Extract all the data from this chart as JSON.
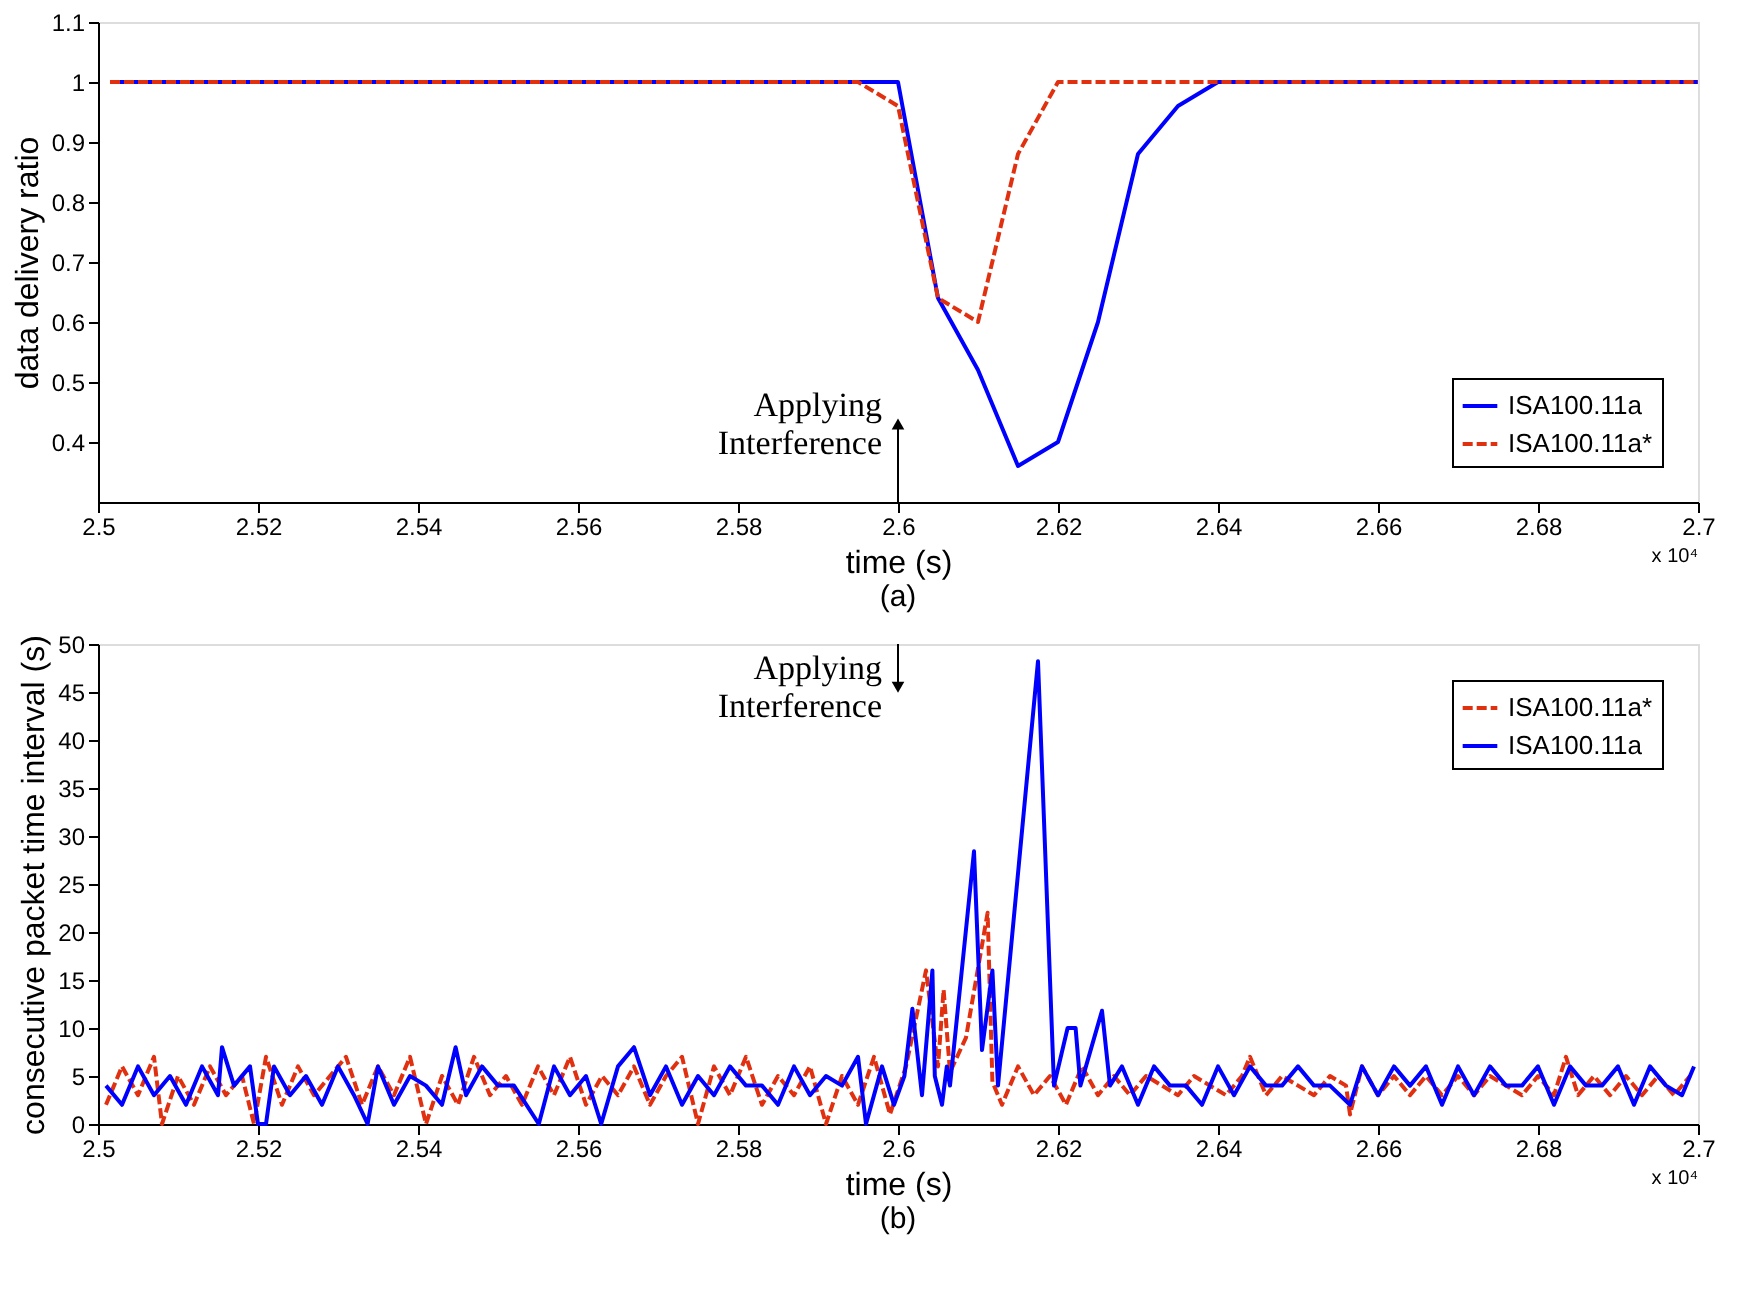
{
  "chart_data": [
    {
      "type": "line",
      "title": "(a)",
      "xlabel": "time (s)",
      "ylabel": "data delivery ratio",
      "xlim": [
        2.5,
        2.7
      ],
      "xticks": [
        2.5,
        2.52,
        2.54,
        2.56,
        2.58,
        2.6,
        2.62,
        2.64,
        2.66,
        2.68,
        2.7
      ],
      "ylim": [
        0.3,
        1.1
      ],
      "yticks": [
        0.4,
        0.5,
        0.6,
        0.7,
        0.8,
        0.9,
        1,
        1.1
      ],
      "grid": false,
      "legend": "bottom right",
      "annotations": [
        {
          "text": "Applying\nInterference",
          "x": 2.6,
          "y": 0.43
        },
        "x 10⁴"
      ],
      "series": [
        {
          "name": "ISA100.11a",
          "color": "#0000ff",
          "line_style": "solid",
          "x": [
            2.5015,
            2.6,
            2.605,
            2.61,
            2.615,
            2.62,
            2.625,
            2.63,
            2.635,
            2.64,
            2.7
          ],
          "values": [
            1,
            1,
            0.64,
            0.52,
            0.36,
            0.4,
            0.6,
            0.88,
            0.96,
            1,
            1
          ]
        },
        {
          "name": "ISA100.11a*",
          "color": "#e03010",
          "line_style": "dashed",
          "x": [
            2.5015,
            2.595,
            2.6,
            2.605,
            2.61,
            2.615,
            2.62,
            2.7
          ],
          "values": [
            1,
            1,
            0.96,
            0.64,
            0.6,
            0.88,
            1,
            1
          ]
        }
      ]
    },
    {
      "type": "line",
      "title": "(b)",
      "xlabel": "time (s)",
      "ylabel": "consecutive packet time interval (s)",
      "xlim": [
        2.5,
        2.7
      ],
      "xticks": [
        2.5,
        2.52,
        2.54,
        2.56,
        2.58,
        2.6,
        2.62,
        2.64,
        2.66,
        2.68,
        2.7
      ],
      "ylim": [
        0,
        50
      ],
      "yticks": [
        0,
        5,
        10,
        15,
        20,
        25,
        30,
        35,
        40,
        45,
        50
      ],
      "grid": false,
      "legend": "top right",
      "annotations": [
        {
          "text": "Applying\nInterference",
          "x": 2.6,
          "y": 45.5
        },
        "x 10⁴"
      ],
      "series": [
        {
          "name": "ISA100.11a*",
          "color": "#e03010",
          "line_style": "dashed",
          "x": [
            2.501,
            2.503,
            2.505,
            2.507,
            2.508,
            2.51,
            2.512,
            2.514,
            2.516,
            2.518,
            2.5195,
            2.521,
            2.523,
            2.525,
            2.527,
            2.529,
            2.531,
            2.533,
            2.535,
            2.537,
            2.539,
            2.541,
            2.543,
            2.545,
            2.547,
            2.549,
            2.551,
            2.553,
            2.555,
            2.557,
            2.559,
            2.561,
            2.563,
            2.565,
            2.567,
            2.569,
            2.571,
            2.573,
            2.575,
            2.577,
            2.579,
            2.581,
            2.583,
            2.585,
            2.587,
            2.589,
            2.591,
            2.593,
            2.595,
            2.597,
            2.599,
            2.601,
            2.6035,
            2.605,
            2.6057,
            2.6065,
            2.6085,
            2.6112,
            2.6118,
            2.613,
            2.615,
            2.617,
            2.619,
            2.621,
            2.623,
            2.625,
            2.627,
            2.629,
            2.631,
            2.633,
            2.635,
            2.637,
            2.639,
            2.641,
            2.643,
            2.644,
            2.646,
            2.648,
            2.65,
            2.652,
            2.654,
            2.656,
            2.6565,
            2.658,
            2.66,
            2.662,
            2.664,
            2.666,
            2.668,
            2.67,
            2.672,
            2.674,
            2.676,
            2.678,
            2.68,
            2.682,
            2.6835,
            2.685,
            2.687,
            2.689,
            2.691,
            2.693,
            2.695,
            2.697,
            2.699
          ],
          "values": [
            2,
            6,
            3,
            7,
            0,
            5,
            2,
            6,
            3,
            5,
            0,
            7,
            2,
            6,
            3,
            5,
            7,
            2,
            6,
            3,
            7,
            0,
            5,
            2,
            7,
            3,
            5,
            2,
            6,
            3,
            7,
            2,
            5,
            3,
            6,
            2,
            5,
            7,
            0,
            6,
            3,
            7,
            2,
            5,
            3,
            6,
            0,
            5,
            2,
            7,
            1,
            6,
            16,
            6,
            14,
            5.4,
            9,
            22,
            4.4,
            2,
            6,
            3,
            5,
            2,
            6,
            3,
            5,
            3,
            5,
            4,
            3,
            5,
            4,
            3,
            5,
            7,
            3,
            5,
            4,
            3,
            5,
            4,
            1,
            6,
            3,
            5,
            3,
            5,
            3,
            5,
            3,
            5,
            4,
            3,
            5,
            3,
            7,
            3,
            5,
            3,
            5,
            3,
            5,
            3,
            5
          ]
        },
        {
          "name": "ISA100.11a",
          "color": "#0000ff",
          "line_style": "solid",
          "x": [
            2.501,
            2.503,
            2.505,
            2.507,
            2.509,
            2.511,
            2.513,
            2.515,
            2.5155,
            2.517,
            2.519,
            2.52,
            2.521,
            2.522,
            2.524,
            2.526,
            2.528,
            2.53,
            2.532,
            2.5337,
            2.535,
            2.537,
            2.539,
            2.541,
            2.543,
            2.5447,
            2.546,
            2.548,
            2.55,
            2.552,
            2.5551,
            2.557,
            2.559,
            2.561,
            2.5629,
            2.565,
            2.567,
            2.569,
            2.571,
            2.573,
            2.575,
            2.577,
            2.579,
            2.581,
            2.583,
            2.585,
            2.587,
            2.589,
            2.591,
            2.593,
            2.595,
            2.596,
            2.598,
            2.5995,
            2.6008,
            2.6018,
            2.603,
            2.6043,
            2.6046,
            2.6055,
            2.6061,
            2.6065,
            2.6095,
            2.6105,
            2.6118,
            2.6125,
            2.6175,
            2.6195,
            2.6212,
            2.6222,
            2.6228,
            2.6255,
            2.6265,
            2.628,
            2.63,
            2.632,
            2.634,
            2.636,
            2.638,
            2.64,
            2.642,
            2.644,
            2.646,
            2.648,
            2.65,
            2.652,
            2.654,
            2.6565,
            2.658,
            2.66,
            2.662,
            2.664,
            2.666,
            2.668,
            2.67,
            2.672,
            2.674,
            2.676,
            2.678,
            2.68,
            2.682,
            2.684,
            2.686,
            2.688,
            2.69,
            2.692,
            2.694,
            2.696,
            2.698,
            2.6995
          ],
          "values": [
            4,
            2,
            6,
            3,
            5,
            2,
            6,
            3,
            8,
            4,
            6,
            0,
            0,
            6,
            3,
            5,
            2,
            6,
            3,
            0,
            6,
            2,
            5,
            4,
            2,
            8,
            3,
            6,
            4,
            4,
            0,
            6,
            3,
            5,
            0,
            6,
            8,
            3,
            6,
            2,
            5,
            3,
            6,
            4,
            4,
            2,
            6,
            3,
            5,
            4,
            7,
            0,
            6,
            2,
            5,
            12,
            3,
            16,
            5,
            2,
            6,
            4,
            28.4,
            7.7,
            16,
            4,
            48.2,
            4,
            10,
            10,
            4,
            11.8,
            4,
            6,
            2,
            6,
            4,
            4,
            2,
            6,
            3,
            6,
            4,
            4,
            6,
            4,
            4,
            2,
            6,
            3,
            6,
            4,
            6,
            2,
            6,
            3,
            6,
            4,
            4,
            6,
            2,
            6,
            4,
            4,
            6,
            2,
            6,
            4,
            3,
            6
          ]
        }
      ]
    }
  ]
}
